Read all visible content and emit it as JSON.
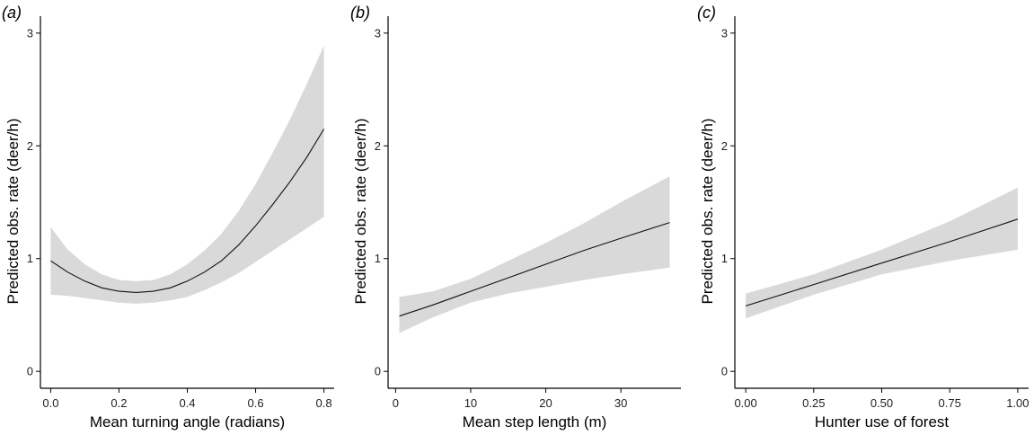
{
  "chart_data": [
    {
      "type": "line",
      "panel_label": "(a)",
      "xlabel": "Mean turning angle (radians)",
      "ylabel": "Predicted obs. rate (deer/h)",
      "xlim": [
        -0.03,
        0.83
      ],
      "ylim": [
        -0.15,
        3.15
      ],
      "xticks": [
        0.0,
        0.2,
        0.4,
        0.6,
        0.8
      ],
      "xtick_labels": [
        "0.0",
        "0.2",
        "0.4",
        "0.6",
        "0.8"
      ],
      "yticks": [
        0,
        1,
        2,
        3
      ],
      "ytick_labels": [
        "0",
        "1",
        "2",
        "3"
      ],
      "grid": false,
      "series": [
        {
          "x": [
            0.0,
            0.05,
            0.1,
            0.15,
            0.2,
            0.25,
            0.3,
            0.35,
            0.4,
            0.45,
            0.5,
            0.55,
            0.6,
            0.65,
            0.7,
            0.75,
            0.8
          ],
          "y": [
            0.98,
            0.88,
            0.8,
            0.74,
            0.71,
            0.7,
            0.71,
            0.74,
            0.8,
            0.88,
            0.98,
            1.12,
            1.29,
            1.48,
            1.68,
            1.9,
            2.15
          ],
          "lower": [
            0.68,
            0.67,
            0.65,
            0.63,
            0.61,
            0.6,
            0.61,
            0.63,
            0.66,
            0.72,
            0.79,
            0.87,
            0.97,
            1.07,
            1.17,
            1.27,
            1.37
          ],
          "upper": [
            1.28,
            1.08,
            0.95,
            0.86,
            0.81,
            0.8,
            0.81,
            0.86,
            0.95,
            1.07,
            1.22,
            1.42,
            1.66,
            1.94,
            2.23,
            2.55,
            2.89
          ]
        }
      ]
    },
    {
      "type": "line",
      "panel_label": "(b)",
      "xlabel": "Mean step length (m)",
      "ylabel": "Predicted obs. rate (deer/h)",
      "xlim": [
        -1.0,
        38.0
      ],
      "ylim": [
        -0.15,
        3.15
      ],
      "xticks": [
        0,
        10,
        20,
        30
      ],
      "xtick_labels": [
        "0",
        "10",
        "20",
        "30"
      ],
      "yticks": [
        0,
        1,
        2,
        3
      ],
      "ytick_labels": [
        "0",
        "1",
        "2",
        "3"
      ],
      "grid": false,
      "series": [
        {
          "x": [
            0.5,
            5,
            10,
            15,
            20,
            25,
            30,
            36.5
          ],
          "y": [
            0.49,
            0.59,
            0.71,
            0.83,
            0.95,
            1.07,
            1.18,
            1.32
          ],
          "lower": [
            0.34,
            0.48,
            0.61,
            0.69,
            0.75,
            0.81,
            0.86,
            0.92
          ],
          "upper": [
            0.66,
            0.71,
            0.82,
            0.98,
            1.14,
            1.31,
            1.5,
            1.73
          ]
        }
      ]
    },
    {
      "type": "line",
      "panel_label": "(c)",
      "xlabel": "Hunter use of forest",
      "ylabel": "Predicted obs. rate (deer/h)",
      "xlim": [
        -0.04,
        1.04
      ],
      "ylim": [
        -0.15,
        3.15
      ],
      "xticks": [
        0.0,
        0.25,
        0.5,
        0.75,
        1.0
      ],
      "xtick_labels": [
        "0.00",
        "0.25",
        "0.50",
        "0.75",
        "1.00"
      ],
      "yticks": [
        0,
        1,
        2,
        3
      ],
      "ytick_labels": [
        "0",
        "1",
        "2",
        "3"
      ],
      "grid": false,
      "series": [
        {
          "x": [
            0.0,
            0.25,
            0.5,
            0.75,
            1.0
          ],
          "y": [
            0.58,
            0.77,
            0.96,
            1.15,
            1.35
          ],
          "lower": [
            0.47,
            0.68,
            0.86,
            0.98,
            1.08
          ],
          "upper": [
            0.69,
            0.86,
            1.08,
            1.33,
            1.63
          ]
        }
      ]
    }
  ]
}
